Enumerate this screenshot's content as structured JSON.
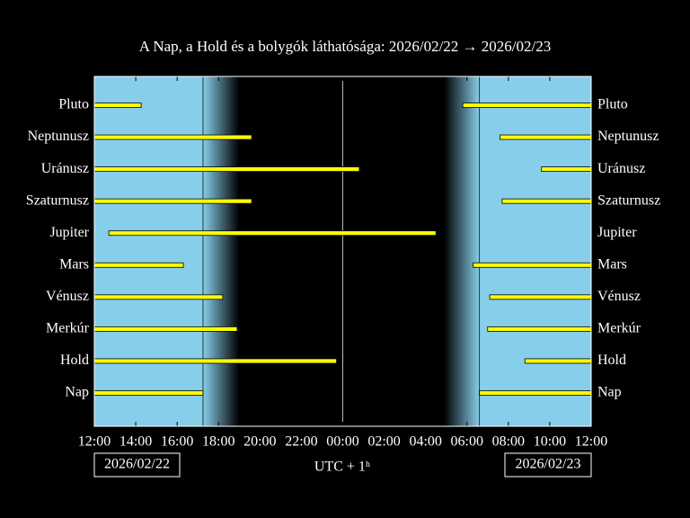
{
  "chart_data": {
    "type": "visibility",
    "title": "A Nap, a Hold és a bolygók láthatósága: 2026/02/22 → 2026/02/23",
    "xlabel": "UTC + 1ʰ",
    "date_labels": [
      "2026/02/22",
      "2026/02/23"
    ],
    "xlim": [
      12,
      36
    ],
    "xticks": [
      {
        "value": 12,
        "label": "12:00"
      },
      {
        "value": 14,
        "label": "14:00"
      },
      {
        "value": 16,
        "label": "16:00"
      },
      {
        "value": 18,
        "label": "18:00"
      },
      {
        "value": 20,
        "label": "20:00"
      },
      {
        "value": 22,
        "label": "22:00"
      },
      {
        "value": 24,
        "label": "00:00"
      },
      {
        "value": 26,
        "label": "02:00"
      },
      {
        "value": 28,
        "label": "04:00"
      },
      {
        "value": 30,
        "label": "06:00"
      },
      {
        "value": 32,
        "label": "08:00"
      },
      {
        "value": 34,
        "label": "10:00"
      },
      {
        "value": 36,
        "label": "12:00"
      }
    ],
    "midnight_line": 24,
    "sunset": 17.25,
    "dark_start": 19.0,
    "dark_end": 28.9,
    "sunrise": 30.6,
    "day_color": "#87ceeb",
    "night_color": "#000000",
    "bar_color": "#ffff00",
    "series": [
      {
        "name": "Pluto",
        "values": [
          [
            12,
            14.26
          ],
          [
            29.8,
            36
          ]
        ]
      },
      {
        "name": "Neptunusz",
        "values": [
          [
            12,
            19.6
          ],
          [
            31.6,
            36
          ]
        ]
      },
      {
        "name": "Uránusz",
        "values": [
          [
            12,
            24.8
          ],
          [
            33.6,
            36
          ]
        ]
      },
      {
        "name": "Szaturnusz",
        "values": [
          [
            12,
            19.6
          ],
          [
            31.7,
            36
          ]
        ]
      },
      {
        "name": "Jupiter",
        "values": [
          [
            12.7,
            28.5
          ]
        ]
      },
      {
        "name": "Mars",
        "values": [
          [
            12,
            16.3
          ],
          [
            30.3,
            36
          ]
        ]
      },
      {
        "name": "Vénusz",
        "values": [
          [
            12,
            18.2
          ],
          [
            31.1,
            36
          ]
        ]
      },
      {
        "name": "Merkúr",
        "values": [
          [
            12,
            18.9
          ],
          [
            31.0,
            36
          ]
        ]
      },
      {
        "name": "Hold",
        "values": [
          [
            12,
            23.7
          ],
          [
            32.8,
            36
          ]
        ]
      },
      {
        "name": "Nap",
        "values": [
          [
            12,
            17.25
          ],
          [
            30.6,
            36
          ]
        ]
      }
    ]
  }
}
